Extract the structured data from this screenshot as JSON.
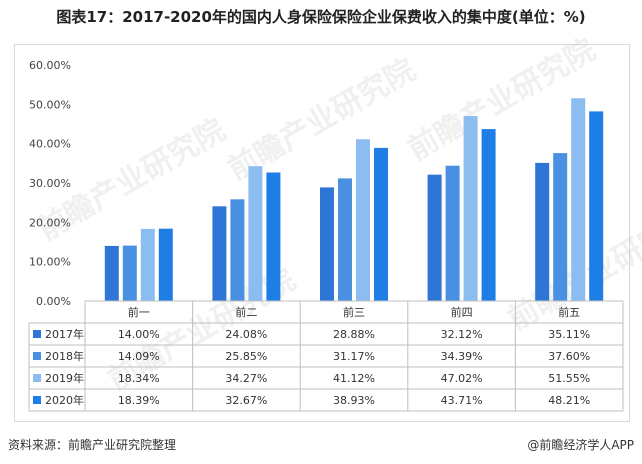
{
  "title": "图表17：2017-2020年的国内人身保险保险企业保费收入的集中度(单位：%)",
  "watermark": "前瞻产业研究院",
  "source": "资料来源：前瞻产业研究院整理",
  "credit": "@前瞻经济学人APP",
  "colors": [
    "#2e75d6",
    "#4a90e2",
    "#8cbdf0",
    "#1f7ee6"
  ],
  "chart_data": {
    "type": "bar",
    "title": "图表17：2017-2020年的国内人身保险保险企业保费收入的集中度(单位：%)",
    "categories": [
      "前一",
      "前二",
      "前三",
      "前四",
      "前五"
    ],
    "series": [
      {
        "name": "2017年",
        "values": [
          14.0,
          24.08,
          28.88,
          32.12,
          35.11
        ]
      },
      {
        "name": "2018年",
        "values": [
          14.09,
          25.85,
          31.17,
          34.39,
          37.6
        ]
      },
      {
        "name": "2019年",
        "values": [
          18.34,
          34.27,
          41.12,
          47.02,
          51.55
        ]
      },
      {
        "name": "2020年",
        "values": [
          18.39,
          32.67,
          38.93,
          43.71,
          48.21
        ]
      }
    ],
    "yticks": [
      "0.00%",
      "10.00%",
      "20.00%",
      "30.00%",
      "40.00%",
      "50.00%",
      "60.00%"
    ],
    "ylim": [
      0,
      60
    ],
    "table": [
      [
        "14.00%",
        "24.08%",
        "28.88%",
        "32.12%",
        "35.11%"
      ],
      [
        "14.09%",
        "25.85%",
        "31.17%",
        "34.39%",
        "37.60%"
      ],
      [
        "18.34%",
        "34.27%",
        "41.12%",
        "47.02%",
        "51.55%"
      ],
      [
        "18.39%",
        "32.67%",
        "38.93%",
        "43.71%",
        "48.21%"
      ]
    ],
    "grid": false,
    "legend": "data-table"
  }
}
